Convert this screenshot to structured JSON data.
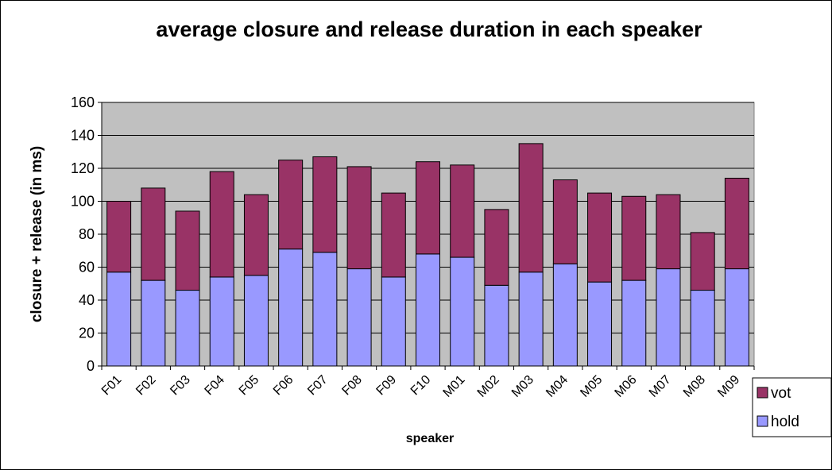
{
  "chart_data": {
    "type": "stacked-bar",
    "title": "average closure and release duration in each speaker",
    "x_label": "speaker",
    "y_label": "closure + release (in ms)",
    "categories": [
      "F01",
      "F02",
      "F03",
      "F04",
      "F05",
      "F06",
      "F07",
      "F08",
      "F09",
      "F10",
      "M01",
      "M02",
      "M03",
      "M04",
      "M05",
      "M06",
      "M07",
      "M08",
      "M09"
    ],
    "series": [
      {
        "name": "hold",
        "color": "#9999ff",
        "values": [
          57,
          52,
          46,
          54,
          55,
          71,
          69,
          59,
          54,
          68,
          66,
          49,
          57,
          62,
          51,
          52,
          59,
          46,
          59
        ]
      },
      {
        "name": "vot",
        "color": "#993366",
        "values": [
          43,
          56,
          48,
          64,
          49,
          54,
          58,
          62,
          51,
          56,
          56,
          46,
          78,
          51,
          54,
          51,
          45,
          35,
          55
        ]
      }
    ],
    "ylim": [
      0,
      160
    ],
    "yticks": [
      0,
      20,
      40,
      60,
      80,
      100,
      120,
      140,
      160
    ],
    "grid": true,
    "legend": "right",
    "plot_background": "#c0c0c0"
  }
}
